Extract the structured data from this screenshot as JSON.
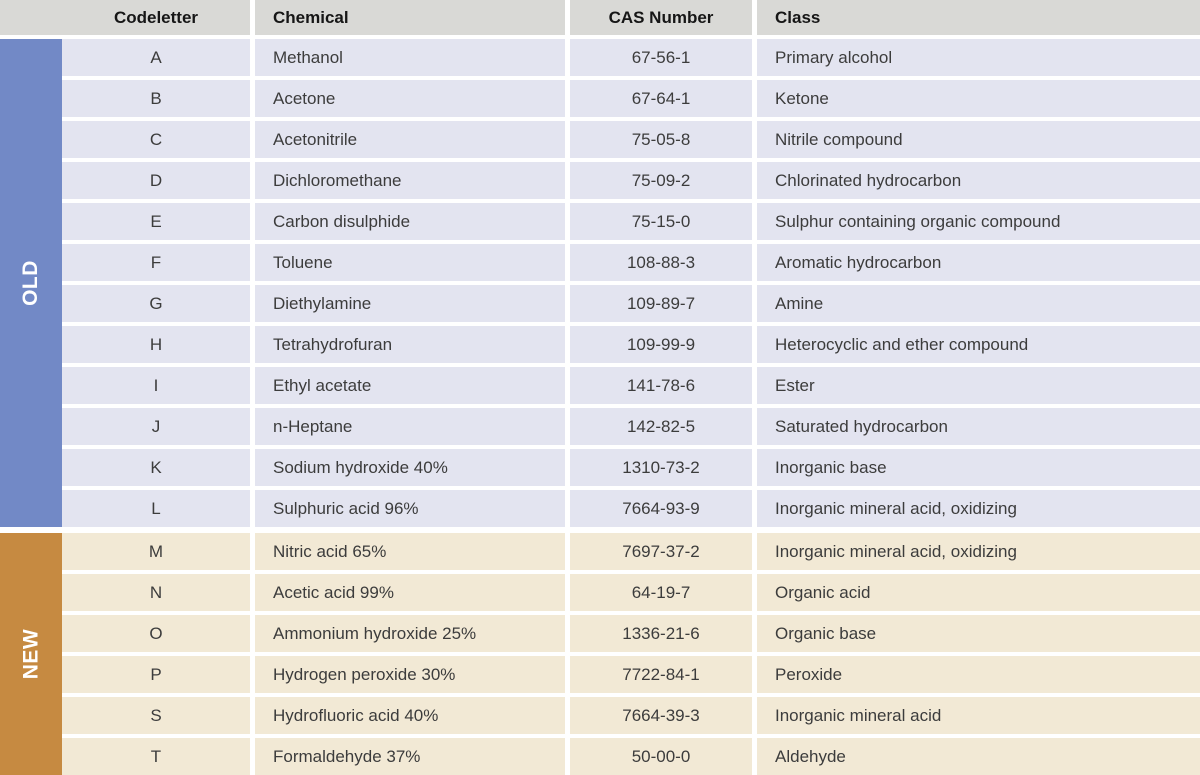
{
  "header": {
    "bg_color": "#d9d9d6",
    "columns": [
      "Codeletter",
      "Chemical",
      "CAS Number",
      "Class"
    ]
  },
  "sections": [
    {
      "label": "OLD",
      "sidebar_color": "#7289c6",
      "row_bg": "#e3e4f0",
      "rows": [
        {
          "letter": "A",
          "chemical": "Methanol",
          "cas": "67-56-1",
          "class": "Primary alcohol"
        },
        {
          "letter": "B",
          "chemical": "Acetone",
          "cas": "67-64-1",
          "class": "Ketone"
        },
        {
          "letter": "C",
          "chemical": "Acetonitrile",
          "cas": "75-05-8",
          "class": "Nitrile compound"
        },
        {
          "letter": "D",
          "chemical": "Dichloromethane",
          "cas": "75-09-2",
          "class": "Chlorinated hydrocarbon"
        },
        {
          "letter": "E",
          "chemical": "Carbon disulphide",
          "cas": "75-15-0",
          "class": "Sulphur containing organic compound"
        },
        {
          "letter": "F",
          "chemical": "Toluene",
          "cas": "108-88-3",
          "class": "Aromatic hydrocarbon"
        },
        {
          "letter": "G",
          "chemical": "Diethylamine",
          "cas": "109-89-7",
          "class": "Amine"
        },
        {
          "letter": "H",
          "chemical": "Tetrahydrofuran",
          "cas": "109-99-9",
          "class": "Heterocyclic and ether compound"
        },
        {
          "letter": "I",
          "chemical": "Ethyl acetate",
          "cas": "141-78-6",
          "class": "Ester"
        },
        {
          "letter": "J",
          "chemical": "n-Heptane",
          "cas": "142-82-5",
          "class": "Saturated hydrocarbon"
        },
        {
          "letter": "K",
          "chemical": "Sodium hydroxide 40%",
          "cas": "1310-73-2",
          "class": "Inorganic base"
        },
        {
          "letter": "L",
          "chemical": "Sulphuric acid 96%",
          "cas": "7664-93-9",
          "class": "Inorganic mineral acid, oxidizing"
        }
      ]
    },
    {
      "label": "NEW",
      "sidebar_color": "#c68a41",
      "row_bg": "#f2e9d5",
      "rows": [
        {
          "letter": "M",
          "chemical": "Nitric acid 65%",
          "cas": "7697-37-2",
          "class": "Inorganic mineral acid, oxidizing"
        },
        {
          "letter": "N",
          "chemical": "Acetic acid 99%",
          "cas": "64-19-7",
          "class": "Organic acid"
        },
        {
          "letter": "O",
          "chemical": "Ammonium hydroxide 25%",
          "cas": "1336-21-6",
          "class": "Organic base"
        },
        {
          "letter": "P",
          "chemical": "Hydrogen peroxide 30%",
          "cas": "7722-84-1",
          "class": "Peroxide"
        },
        {
          "letter": "S",
          "chemical": "Hydrofluoric acid 40%",
          "cas": "7664-39-3",
          "class": "Inorganic mineral acid"
        },
        {
          "letter": "T",
          "chemical": "Formaldehyde 37%",
          "cas": "50-00-0",
          "class": "Aldehyde"
        }
      ]
    }
  ]
}
